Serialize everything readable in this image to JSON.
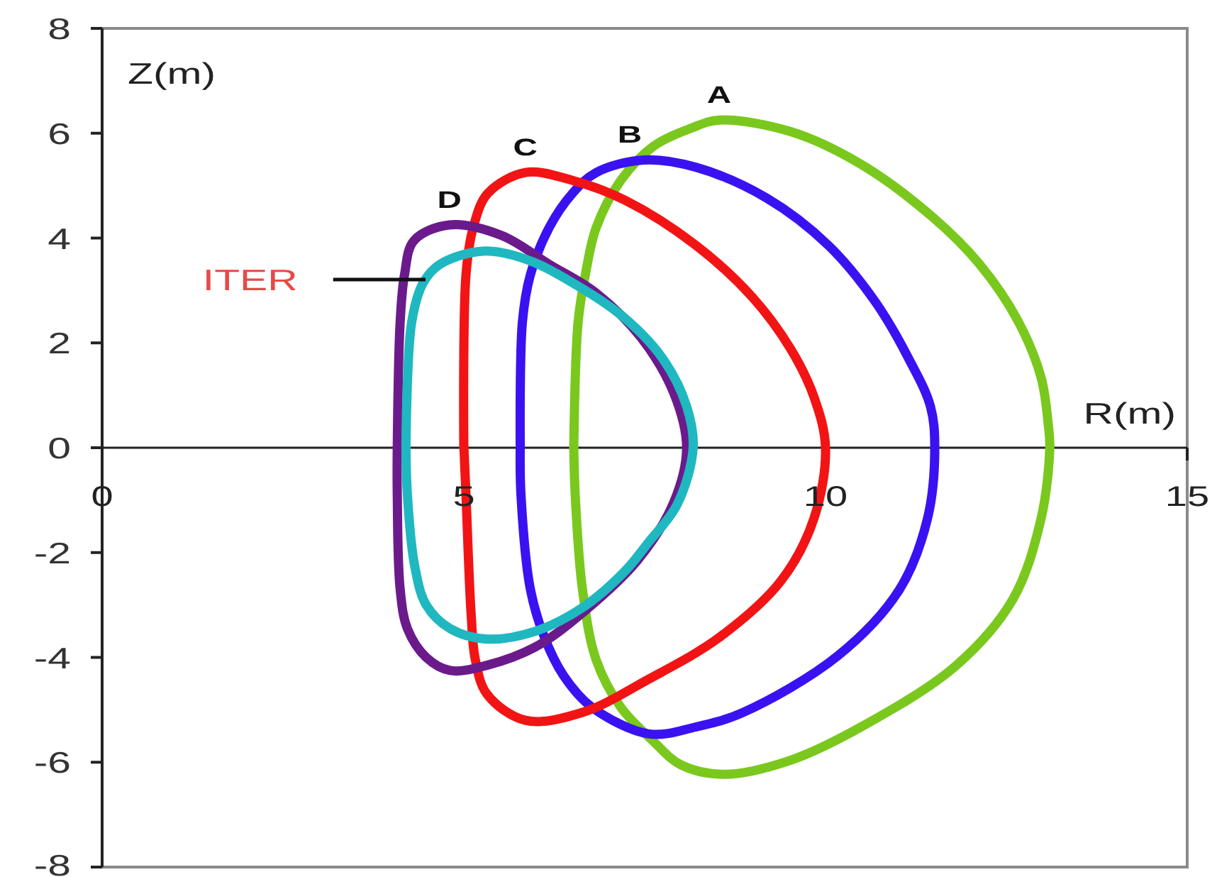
{
  "chart_data": {
    "type": "line",
    "xlabel": "R(m)",
    "ylabel": "Z(m)",
    "xlim": [
      0,
      15
    ],
    "ylim": [
      -8,
      8
    ],
    "xticks": [
      0,
      5,
      10,
      15
    ],
    "yticks": [
      -8,
      -6,
      -4,
      -2,
      0,
      2,
      4,
      6,
      8
    ],
    "series": [
      {
        "name": "A",
        "color": "#7ac81e",
        "x": [
          6.52,
          6.58,
          6.68,
          6.83,
          7.17,
          7.62,
          8.15,
          8.53,
          9.52,
          10.5,
          11.48,
          12.13,
          12.66,
          12.98,
          13.08,
          13.1,
          12.98,
          12.59,
          11.81,
          10.5,
          9.52,
          8.6,
          8.0,
          7.62,
          7.17,
          6.83,
          6.64,
          6.54,
          6.52
        ],
        "values": [
          0,
          2.4,
          3.3,
          4.2,
          5.1,
          5.75,
          6.1,
          6.25,
          6.03,
          5.4,
          4.4,
          3.5,
          2.42,
          1.34,
          0.43,
          0,
          -1.35,
          -2.89,
          -4.15,
          -5.32,
          -5.96,
          -6.23,
          -6.05,
          -5.6,
          -4.95,
          -4.05,
          -2.7,
          -0.9,
          0.05
        ]
      },
      {
        "name": "B",
        "color": "#3a12f2",
        "x": [
          5.78,
          5.81,
          5.92,
          6.18,
          6.5,
          6.83,
          7.49,
          8.21,
          9.19,
          10.04,
          10.69,
          11.15,
          11.45,
          11.51,
          11.41,
          11.02,
          10.17,
          8.86,
          8.2,
          7.56,
          6.77,
          6.38,
          6.11,
          5.92,
          5.79,
          5.78
        ],
        "values": [
          0,
          2.4,
          3.3,
          4.2,
          4.85,
          5.25,
          5.49,
          5.35,
          4.76,
          3.86,
          2.78,
          1.7,
          0.79,
          0,
          -1.35,
          -2.71,
          -3.97,
          -5.05,
          -5.33,
          -5.46,
          -4.95,
          -4.35,
          -3.6,
          -2.7,
          -0.9,
          0.05
        ]
      },
      {
        "name": "C",
        "color": "#f21414",
        "x": [
          5.0,
          5.03,
          5.13,
          5.33,
          5.85,
          6.5,
          7.23,
          8.21,
          8.99,
          9.52,
          9.84,
          10.0,
          9.84,
          9.39,
          8.54,
          7.55,
          6.64,
          5.85,
          5.32,
          5.16,
          5.1,
          5.03,
          5.0
        ],
        "values": [
          0,
          3.3,
          4.2,
          4.85,
          5.25,
          5.1,
          4.72,
          3.86,
          2.87,
          1.88,
          0.97,
          0,
          -1.35,
          -2.53,
          -3.61,
          -4.42,
          -5.05,
          -5.2,
          -4.7,
          -4.05,
          -3.15,
          -0.9,
          0.05
        ]
      },
      {
        "name": "D",
        "color": "#6b1a8c",
        "x": [
          4.08,
          4.12,
          4.18,
          4.31,
          4.8,
          5.52,
          6.18,
          6.83,
          7.45,
          7.9,
          8.08,
          7.9,
          7.4,
          6.64,
          5.99,
          5.32,
          4.81,
          4.48,
          4.22,
          4.12,
          4.08,
          4.08
        ],
        "values": [
          0,
          2.4,
          3.3,
          3.95,
          4.25,
          4.05,
          3.5,
          2.95,
          2.1,
          1.05,
          0,
          -1.05,
          -2.15,
          -3.15,
          -3.8,
          -4.15,
          -4.25,
          -4.0,
          -3.45,
          -2.7,
          -0.9,
          0.05
        ]
      },
      {
        "name": "ITER",
        "color": "#1fb8c0",
        "x": [
          4.2,
          4.28,
          4.44,
          4.67,
          5.26,
          5.85,
          6.5,
          7.2,
          7.75,
          8.08,
          8.17,
          7.95,
          7.55,
          7.23,
          6.64,
          5.99,
          5.32,
          4.81,
          4.48,
          4.32,
          4.22,
          4.2
        ],
        "values": [
          0,
          2.4,
          3.15,
          3.5,
          3.75,
          3.6,
          3.15,
          2.5,
          1.7,
          0.79,
          0,
          -1.08,
          -1.81,
          -2.35,
          -3.05,
          -3.5,
          -3.65,
          -3.45,
          -3.0,
          -2.25,
          -0.9,
          0.05
        ]
      }
    ]
  }
}
